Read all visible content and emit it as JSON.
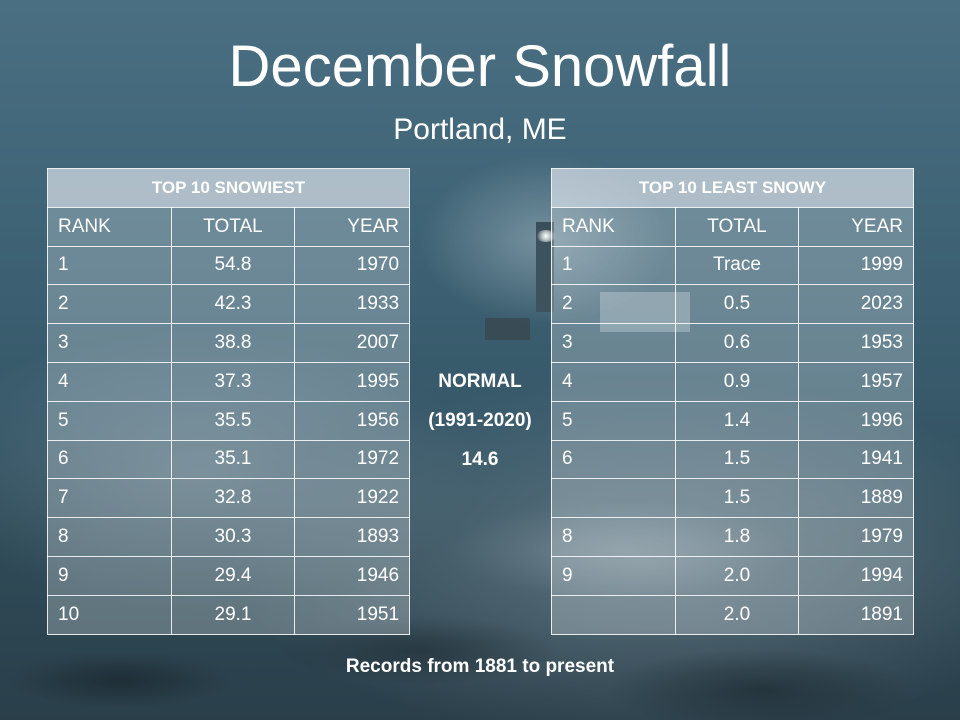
{
  "title": "December Snowfall",
  "subtitle": "Portland, ME",
  "snowiest": {
    "caption": "TOP 10 SNOWIEST",
    "headers": [
      "RANK",
      "TOTAL",
      "YEAR"
    ],
    "rows": [
      [
        "1",
        "54.8",
        "1970"
      ],
      [
        "2",
        "42.3",
        "1933"
      ],
      [
        "3",
        "38.8",
        "2007"
      ],
      [
        "4",
        "37.3",
        "1995"
      ],
      [
        "5",
        "35.5",
        "1956"
      ],
      [
        "6",
        "35.1",
        "1972"
      ],
      [
        "7",
        "32.8",
        "1922"
      ],
      [
        "8",
        "30.3",
        "1893"
      ],
      [
        "9",
        "29.4",
        "1946"
      ],
      [
        "10",
        "29.1",
        "1951"
      ]
    ]
  },
  "least_snowy": {
    "caption": "TOP 10 LEAST SNOWY",
    "headers": [
      "RANK",
      "TOTAL",
      "YEAR"
    ],
    "rows": [
      [
        "1",
        "Trace",
        "1999"
      ],
      [
        "2",
        "0.5",
        "2023"
      ],
      [
        "3",
        "0.6",
        "1953"
      ],
      [
        "4",
        "0.9",
        "1957"
      ],
      [
        "5",
        "1.4",
        "1996"
      ],
      [
        "6",
        "1.5",
        "1941"
      ],
      [
        "",
        "1.5",
        "1889"
      ],
      [
        "8",
        "1.8",
        "1979"
      ],
      [
        "9",
        "2.0",
        "1994"
      ],
      [
        "",
        "2.0",
        "1891"
      ]
    ]
  },
  "normal": {
    "label": "NORMAL",
    "period": "(1991-2020)",
    "value": "14.6"
  },
  "footer": "Records from 1881 to present"
}
